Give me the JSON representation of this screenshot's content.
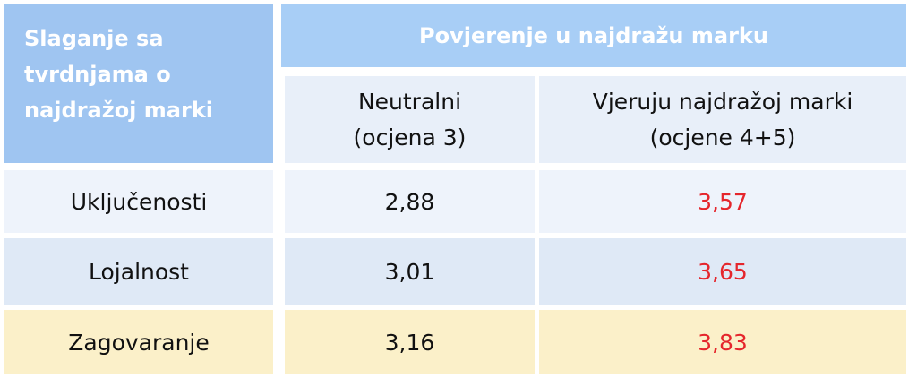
{
  "table": {
    "corner_header": "Slaganje sa tvrdnjama o najdražoj marki",
    "group_header": "Povjerenje u najdražu marku",
    "column_headers": [
      [
        "Neutralni",
        "(ocjena 3)"
      ],
      [
        "Vjeruju najdražoj marki",
        "(ocjene 4+5)"
      ]
    ],
    "rows": [
      [
        "Uključenosti",
        "2,88",
        "3,57"
      ],
      [
        "Lojalnost",
        "3,01",
        "3,65"
      ],
      [
        "Zagovaranje",
        "3,16",
        "3,83"
      ]
    ]
  }
}
